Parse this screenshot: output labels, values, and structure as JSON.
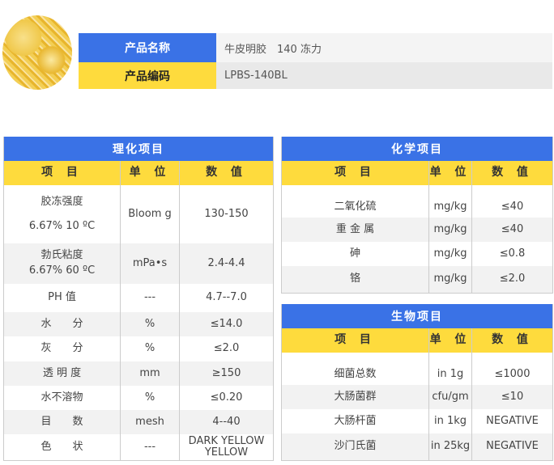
{
  "product": {
    "name_label": "产品名称",
    "name_value": "牛皮明胶　140  冻力",
    "code_label": "产品编码",
    "code_value": "LPBS-140BL"
  },
  "colors": {
    "blue": "#3a72e6",
    "yellow": "#fedb3d",
    "stripe": "#f2f2f2"
  },
  "headers": [
    "项 目",
    "单 位",
    "数 值"
  ],
  "physical": {
    "title": "理化项目",
    "rows": [
      {
        "item": "胶冻强度",
        "sub": "6.67% 10 ºC",
        "unit": "Bloom g",
        "value": "130-150"
      },
      {
        "item": "勃氏粘度",
        "sub": "6.67% 60 ºC",
        "unit": "mPa•s",
        "value": "2.4-4.4"
      },
      {
        "item": "PH 值",
        "unit": "---",
        "value": "4.7--7.0"
      },
      {
        "item": "水　　分",
        "unit": "%",
        "value": "≤14.0"
      },
      {
        "item": "灰　　分",
        "unit": "%",
        "value": "≤2.0"
      },
      {
        "item": "透 明 度",
        "unit": "mm",
        "value": "≥150"
      },
      {
        "item": "水不溶物",
        "unit": "%",
        "value": "≤0.20"
      },
      {
        "item": "目　　数",
        "unit": "mesh",
        "value": "4--40"
      },
      {
        "item": "色　　状",
        "unit": "---",
        "value": "DARK YELLOW YELLOW"
      }
    ]
  },
  "chemical": {
    "title": "化学项目",
    "rows": [
      {
        "item": "二氧化硫",
        "unit": "mg/kg",
        "value": "≤40"
      },
      {
        "item": "重 金 属",
        "unit": "mg/kg",
        "value": "≤40"
      },
      {
        "item": "砷",
        "unit": "mg/kg",
        "value": "≤0.8"
      },
      {
        "item": "铬",
        "unit": "mg/kg",
        "value": "≤2.0"
      }
    ]
  },
  "biological": {
    "title": "生物项目",
    "rows": [
      {
        "item": "细菌总数",
        "unit": "in 1g",
        "value": "≤1000"
      },
      {
        "item": "大肠菌群",
        "unit": "cfu/gm",
        "value": "≤10"
      },
      {
        "item": "大肠杆菌",
        "unit": "in 1kg",
        "value": "NEGATIVE"
      },
      {
        "item": "沙门氏菌",
        "unit": "in 25kg",
        "value": "NEGATIVE"
      }
    ]
  }
}
